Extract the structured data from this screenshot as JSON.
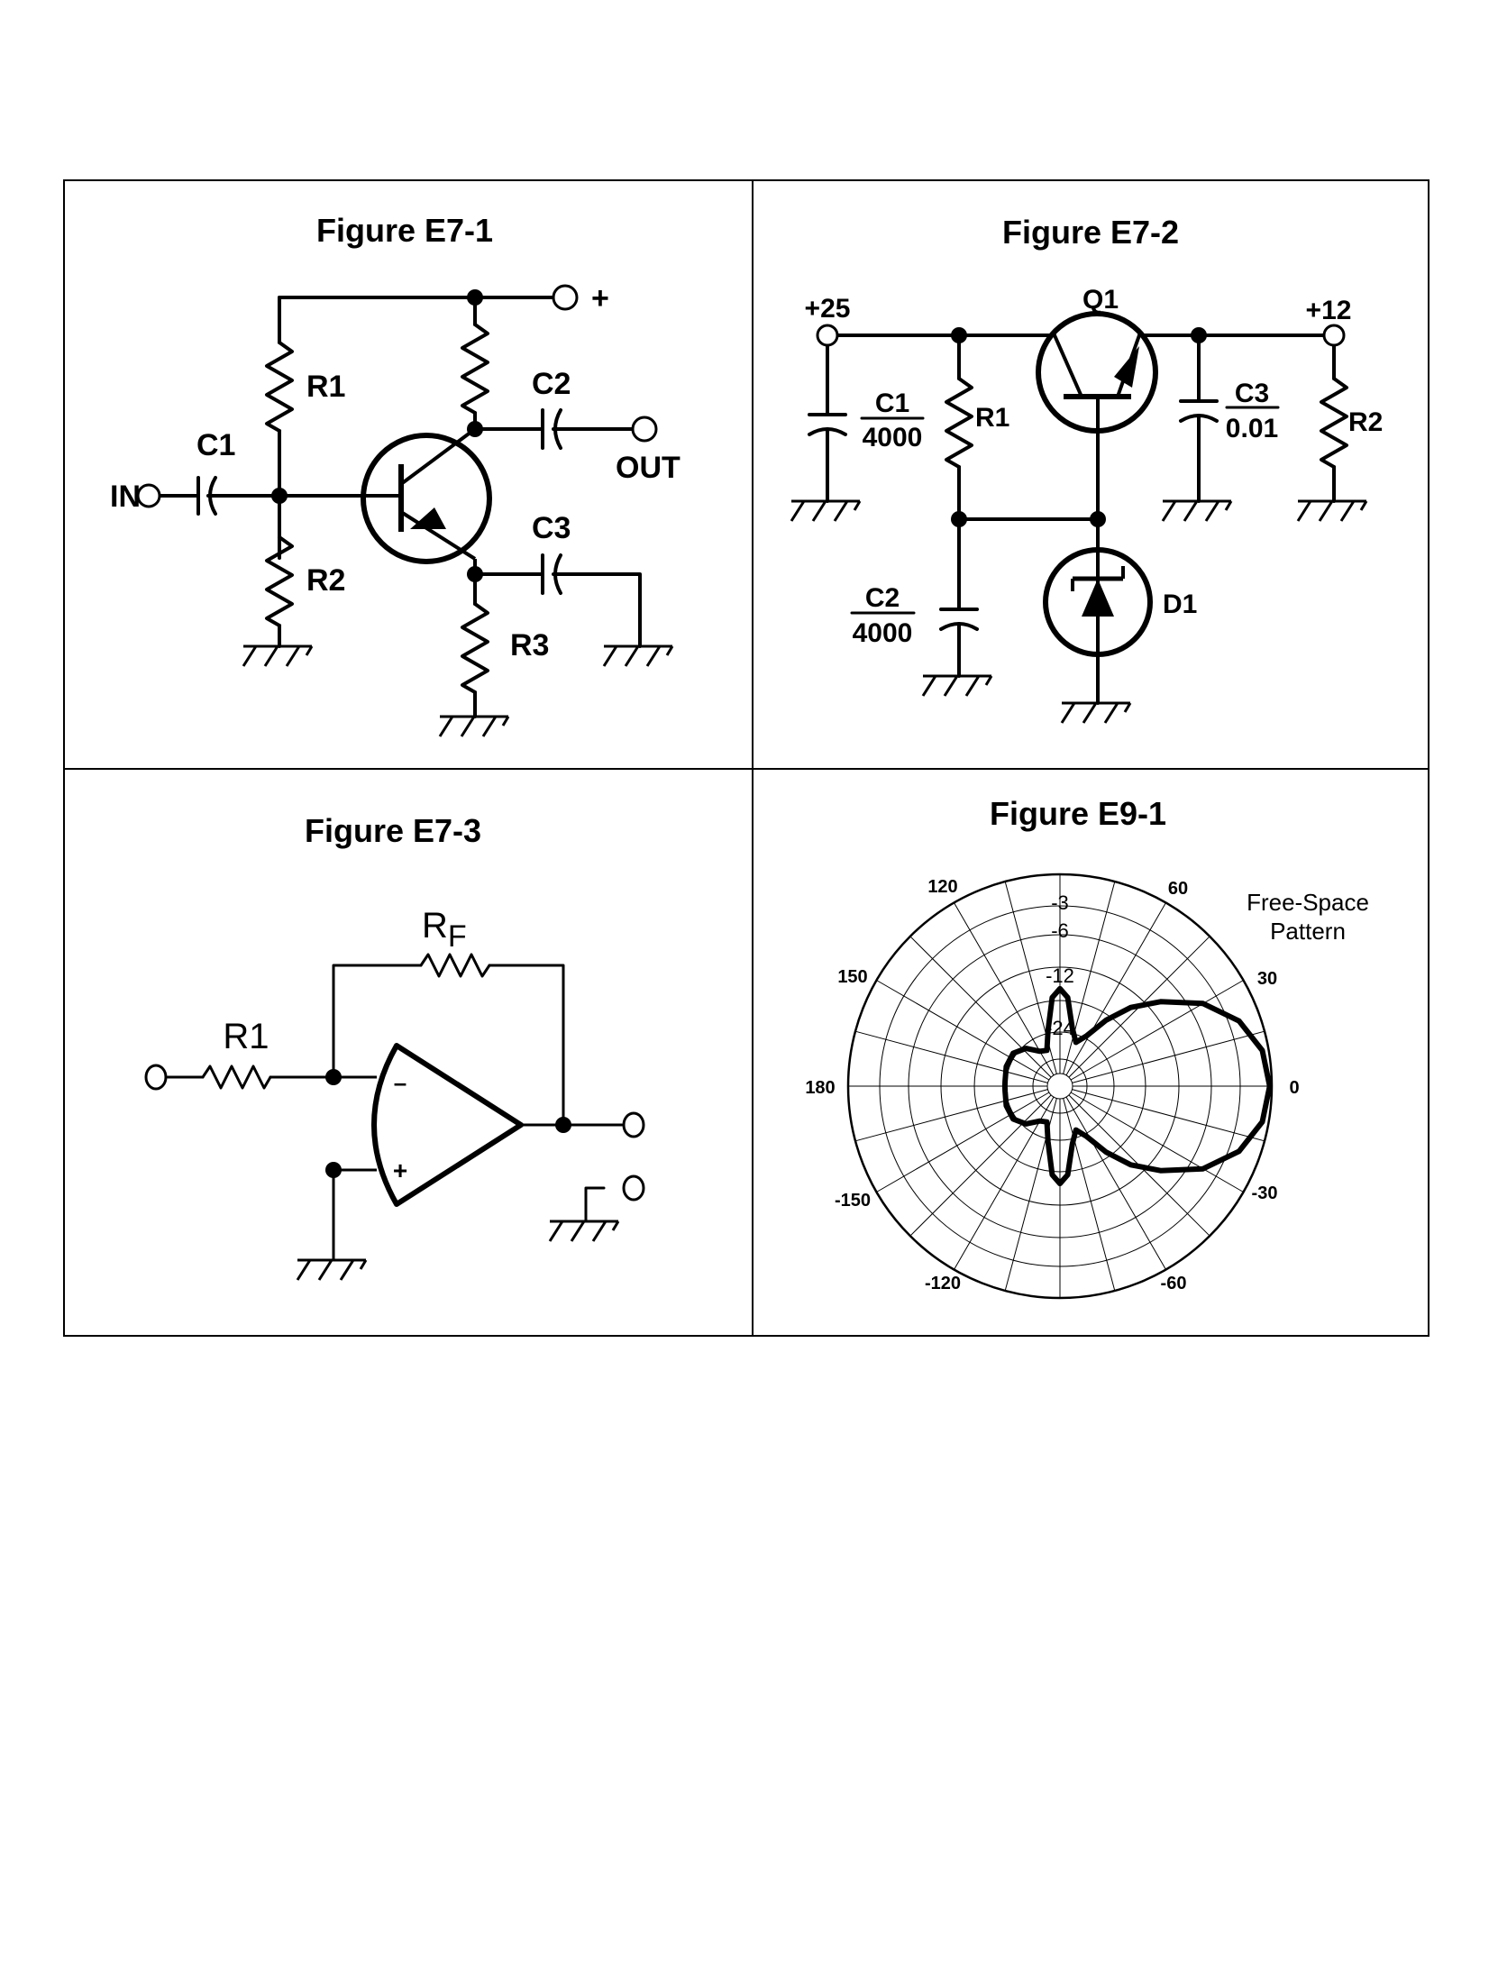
{
  "sheet": {
    "e7_1": {
      "title": "Figure E7-1",
      "plus": "+",
      "r1": "R1",
      "c1": "C1",
      "c2": "C2",
      "in": "IN",
      "out": "OUT",
      "c3": "C3",
      "r2": "R2",
      "r3": "R3"
    },
    "e7_2": {
      "title": "Figure E7-2",
      "v_in": "+25",
      "v_out": "+12",
      "q1": "Q1",
      "r1": "R1",
      "r2": "R2",
      "c1_name": "C1",
      "c1_value": "4000",
      "c2_name": "C2",
      "c2_value": "4000",
      "c3_name": "C3",
      "c3_value": "0.01",
      "d1": "D1"
    },
    "e7_3": {
      "title": "Figure E7-3",
      "rf_main": "R",
      "rf_sub": "F",
      "r1": "R1",
      "minus": "–",
      "plus": "+"
    },
    "e9_1": {
      "title": "Figure E9-1",
      "note_line1": "Free-Space",
      "note_line2": "Pattern",
      "angle_labels": [
        "0",
        "30",
        "60",
        "120",
        "150",
        "180",
        "-150",
        "-120",
        "-60",
        "-30"
      ],
      "ring_labels": [
        "-3",
        "-6",
        "-12",
        "-24"
      ]
    }
  },
  "colors": {
    "ink": "#000000",
    "paper": "#ffffff"
  },
  "icons": [
    "ground-icon",
    "resistor-icon",
    "capacitor-icon",
    "npn-transistor-icon",
    "zener-diode-icon",
    "op-amp-icon",
    "terminal-icon"
  ]
}
